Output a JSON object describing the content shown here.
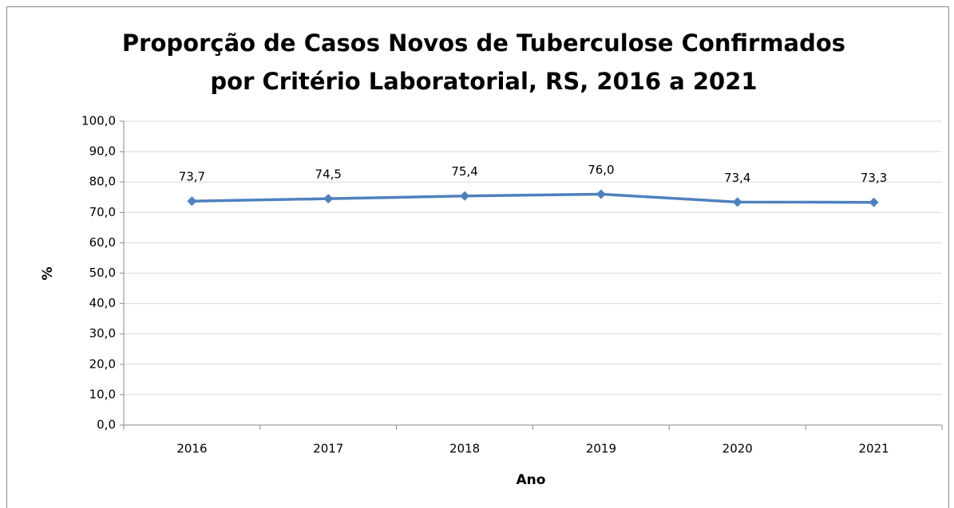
{
  "chart_data": {
    "type": "line",
    "title": [
      "Proporção de Casos Novos de Tuberculose Confirmados",
      "por Critério Laboratorial, RS, 2016 a 2021"
    ],
    "x_label": "Ano",
    "y_label": "%",
    "categories": [
      "2016",
      "2017",
      "2018",
      "2019",
      "2020",
      "2021"
    ],
    "series": [
      {
        "name": "%",
        "color": "#4f81bd",
        "values": [
          73.7,
          74.5,
          75.4,
          76.0,
          73.4,
          73.3
        ],
        "value_labels": [
          "73,7",
          "74,5",
          "75,4",
          "76,0",
          "73,4",
          "73,3"
        ]
      }
    ],
    "ylim": [
      0,
      100
    ],
    "yticks": [
      {
        "value": 0,
        "label": "0,0"
      },
      {
        "value": 10,
        "label": "10,0"
      },
      {
        "value": 20,
        "label": "20,0"
      },
      {
        "value": 30,
        "label": "30,0"
      },
      {
        "value": 40,
        "label": "40,0"
      },
      {
        "value": 50,
        "label": "50,0"
      },
      {
        "value": 60,
        "label": "60,0"
      },
      {
        "value": 70,
        "label": "70,0"
      },
      {
        "value": 80,
        "label": "80,0"
      },
      {
        "value": 90,
        "label": "90,0"
      },
      {
        "value": 100,
        "label": "100,0"
      }
    ],
    "grid": true
  }
}
